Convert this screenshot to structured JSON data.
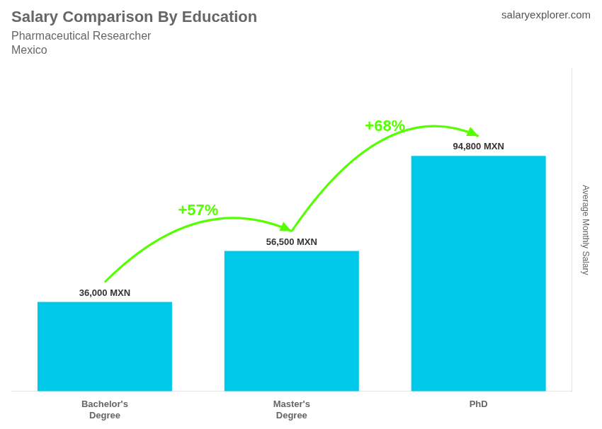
{
  "chart_data": {
    "type": "bar",
    "title": "Salary Comparison By Education",
    "subtitle": "Pharmaceutical Researcher",
    "location": "Mexico",
    "source": "salaryexplorer.com",
    "categories": [
      "Bachelor's\nDegree",
      "Master's\nDegree",
      "PhD"
    ],
    "values": [
      36000,
      56500,
      94800
    ],
    "value_labels": [
      "36,000 MXN",
      "56,500 MXN",
      "94,800 MXN"
    ],
    "data_labels": true,
    "color": "#00C8E8",
    "annotations": [
      {
        "text": "+57%",
        "color": "#55FF00"
      },
      {
        "text": "+68%",
        "color": "#55FF00"
      }
    ],
    "ylabel": "Average Monthly Salary",
    "ylim": [
      0,
      130000
    ],
    "yticks": [],
    "grid": false,
    "tick_labels": "x"
  }
}
